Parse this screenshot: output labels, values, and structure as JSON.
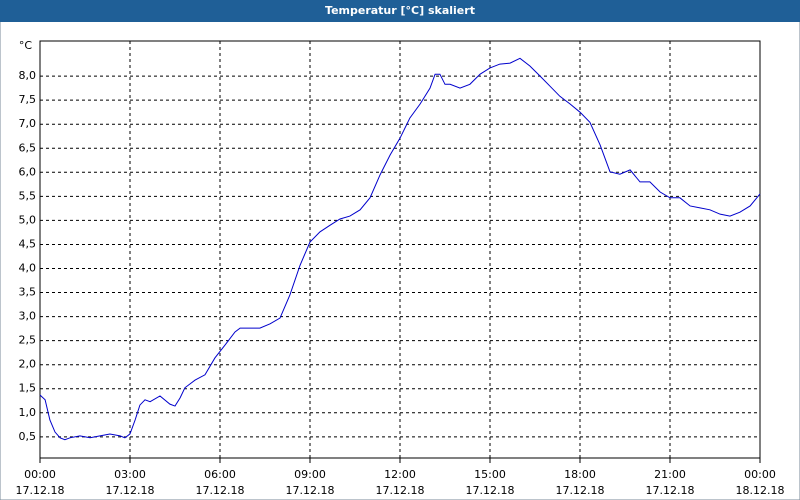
{
  "chart_data": {
    "type": "line",
    "title": "Temperatur [°C] skaliert",
    "ylabel": "°C",
    "x": [
      0,
      0.17,
      0.33,
      0.5,
      0.67,
      0.83,
      1,
      1.33,
      1.67,
      2,
      2.33,
      2.67,
      2.83,
      3,
      3.17,
      3.33,
      3.5,
      3.67,
      4,
      4.33,
      4.5,
      4.67,
      4.83,
      5.17,
      5.5,
      5.83,
      6.17,
      6.5,
      6.67,
      7,
      7.33,
      7.67,
      8,
      8.33,
      8.67,
      9,
      9.33,
      9.67,
      10,
      10.33,
      10.67,
      11,
      11.33,
      11.67,
      12,
      12.33,
      12.67,
      13,
      13.17,
      13.33,
      13.5,
      13.67,
      14,
      14.33,
      14.67,
      15,
      15.33,
      15.67,
      16,
      16.33,
      16.67,
      17,
      17.33,
      17.67,
      18,
      18.33,
      18.67,
      19,
      19.33,
      19.67,
      20,
      20.33,
      20.67,
      21,
      21.33,
      21.67,
      22,
      22.33,
      22.67,
      23,
      23.33,
      23.67,
      24
    ],
    "series": [
      {
        "name": "Temperatur",
        "color": "#0000cc",
        "values": [
          1.37,
          1.27,
          0.85,
          0.6,
          0.48,
          0.44,
          0.48,
          0.52,
          0.48,
          0.52,
          0.56,
          0.52,
          0.48,
          0.56,
          0.85,
          1.16,
          1.27,
          1.23,
          1.35,
          1.18,
          1.14,
          1.31,
          1.52,
          1.68,
          1.79,
          2.14,
          2.41,
          2.68,
          2.76,
          2.76,
          2.76,
          2.85,
          2.97,
          3.45,
          4.07,
          4.55,
          4.76,
          4.9,
          5.03,
          5.09,
          5.22,
          5.47,
          5.94,
          6.36,
          6.71,
          7.13,
          7.42,
          7.75,
          8.04,
          8.04,
          7.83,
          7.83,
          7.75,
          7.83,
          8.04,
          8.17,
          8.25,
          8.27,
          8.37,
          8.21,
          8.0,
          7.79,
          7.58,
          7.42,
          7.25,
          7.04,
          6.57,
          6.01,
          5.96,
          6.05,
          5.8,
          5.8,
          5.59,
          5.47,
          5.47,
          5.3,
          5.26,
          5.22,
          5.13,
          5.09,
          5.17,
          5.3,
          5.55
        ]
      }
    ],
    "xlim": [
      0,
      24
    ],
    "xticks": [
      {
        "value": 0,
        "label": "00:00 17.12.18"
      },
      {
        "value": 3,
        "label": "03:00 17.12.18"
      },
      {
        "value": 6,
        "label": "06:00 17.12.18"
      },
      {
        "value": 9,
        "label": "09:00 17.12.18"
      },
      {
        "value": 12,
        "label": "12:00 17.12.18"
      },
      {
        "value": 15,
        "label": "15:00 17.12.18"
      },
      {
        "value": 18,
        "label": "18:00 17.12.18"
      },
      {
        "value": 21,
        "label": "21:00 17.12.18"
      },
      {
        "value": 24,
        "label": "00:00 18.12.18"
      }
    ],
    "ylim": [
      0.06,
      8.73
    ],
    "yticks": [
      {
        "value": 0.5,
        "label": "0,5"
      },
      {
        "value": 1.0,
        "label": "1,0"
      },
      {
        "value": 1.5,
        "label": "1,5"
      },
      {
        "value": 2.0,
        "label": "2,0"
      },
      {
        "value": 2.5,
        "label": "2,5"
      },
      {
        "value": 3.0,
        "label": "3,0"
      },
      {
        "value": 3.5,
        "label": "3,5"
      },
      {
        "value": 4.0,
        "label": "4,0"
      },
      {
        "value": 4.5,
        "label": "4,5"
      },
      {
        "value": 5.0,
        "label": "5,0"
      },
      {
        "value": 5.5,
        "label": "5,5"
      },
      {
        "value": 6.0,
        "label": "6,0"
      },
      {
        "value": 6.5,
        "label": "6,5"
      },
      {
        "value": 7.0,
        "label": "7,0"
      },
      {
        "value": 7.5,
        "label": "7,5"
      },
      {
        "value": 8.0,
        "label": "8,0"
      }
    ],
    "grid": true
  }
}
